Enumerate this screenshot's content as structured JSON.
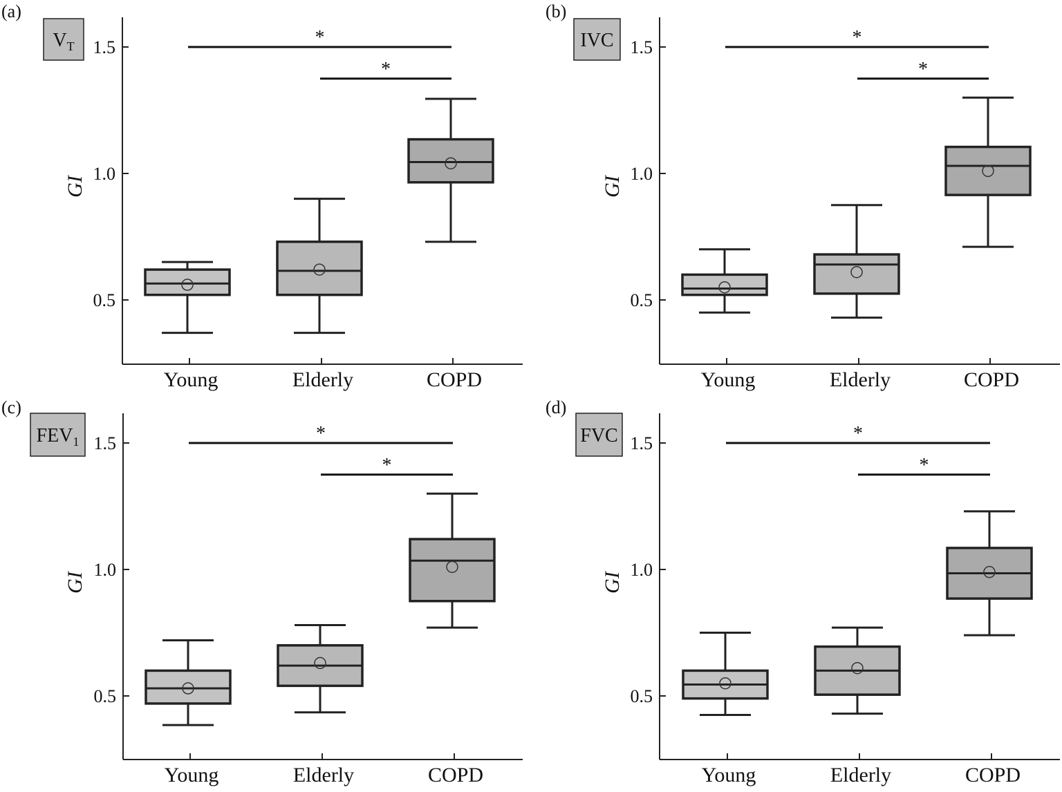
{
  "chart_data": [
    {
      "type": "box",
      "panel_label": "(a)",
      "tag": {
        "main": "V",
        "sub": "T"
      },
      "ylabel": "GI",
      "ylim": [
        0.25,
        1.62
      ],
      "yticks": [
        0.5,
        1.0,
        1.5
      ],
      "ytick_labels": [
        "0.5",
        "1.0",
        "1.5"
      ],
      "categories": [
        "Young",
        "Elderly",
        "COPD"
      ],
      "box_colors": [
        "#c3c3c3",
        "#b8b8b8",
        "#aaaaaa"
      ],
      "boxes": [
        {
          "whisker_low": 0.37,
          "q1": 0.52,
          "median": 0.565,
          "q3": 0.62,
          "whisker_high": 0.65,
          "mean": 0.56
        },
        {
          "whisker_low": 0.37,
          "q1": 0.52,
          "median": 0.615,
          "q3": 0.73,
          "whisker_high": 0.9,
          "mean": 0.62
        },
        {
          "whisker_low": 0.73,
          "q1": 0.965,
          "median": 1.045,
          "q3": 1.135,
          "whisker_high": 1.295,
          "mean": 1.04
        }
      ],
      "significance": [
        {
          "from": 0,
          "to": 2,
          "y": 1.5,
          "label": "*"
        },
        {
          "from": 1,
          "to": 2,
          "y": 1.375,
          "label": "*"
        }
      ]
    },
    {
      "type": "box",
      "panel_label": "(b)",
      "tag": {
        "main": "IVC",
        "sub": ""
      },
      "ylabel": "GI",
      "ylim": [
        0.25,
        1.62
      ],
      "yticks": [
        0.5,
        1.0,
        1.5
      ],
      "ytick_labels": [
        "0.5",
        "1.0",
        "1.5"
      ],
      "categories": [
        "Young",
        "Elderly",
        "COPD"
      ],
      "box_colors": [
        "#c3c3c3",
        "#b8b8b8",
        "#aaaaaa"
      ],
      "boxes": [
        {
          "whisker_low": 0.45,
          "q1": 0.52,
          "median": 0.545,
          "q3": 0.6,
          "whisker_high": 0.7,
          "mean": 0.55
        },
        {
          "whisker_low": 0.43,
          "q1": 0.525,
          "median": 0.64,
          "q3": 0.68,
          "whisker_high": 0.875,
          "mean": 0.61
        },
        {
          "whisker_low": 0.71,
          "q1": 0.915,
          "median": 1.03,
          "q3": 1.105,
          "whisker_high": 1.3,
          "mean": 1.01
        }
      ],
      "significance": [
        {
          "from": 0,
          "to": 2,
          "y": 1.5,
          "label": "*"
        },
        {
          "from": 1,
          "to": 2,
          "y": 1.375,
          "label": "*"
        }
      ]
    },
    {
      "type": "box",
      "panel_label": "(c)",
      "tag": {
        "main": "FEV",
        "sub": "1"
      },
      "ylabel": "GI",
      "ylim": [
        0.25,
        1.62
      ],
      "yticks": [
        0.5,
        1.0,
        1.5
      ],
      "ytick_labels": [
        "0.5",
        "1.0",
        "1.5"
      ],
      "categories": [
        "Young",
        "Elderly",
        "COPD"
      ],
      "box_colors": [
        "#c3c3c3",
        "#b8b8b8",
        "#aaaaaa"
      ],
      "boxes": [
        {
          "whisker_low": 0.385,
          "q1": 0.47,
          "median": 0.53,
          "q3": 0.6,
          "whisker_high": 0.72,
          "mean": 0.53
        },
        {
          "whisker_low": 0.435,
          "q1": 0.54,
          "median": 0.62,
          "q3": 0.7,
          "whisker_high": 0.78,
          "mean": 0.63
        },
        {
          "whisker_low": 0.77,
          "q1": 0.875,
          "median": 1.035,
          "q3": 1.12,
          "whisker_high": 1.3,
          "mean": 1.01
        }
      ],
      "significance": [
        {
          "from": 0,
          "to": 2,
          "y": 1.5,
          "label": "*"
        },
        {
          "from": 1,
          "to": 2,
          "y": 1.375,
          "label": "*"
        }
      ]
    },
    {
      "type": "box",
      "panel_label": "(d)",
      "tag": {
        "main": "FVC",
        "sub": ""
      },
      "ylabel": "GI",
      "ylim": [
        0.25,
        1.62
      ],
      "yticks": [
        0.5,
        1.0,
        1.5
      ],
      "ytick_labels": [
        "0.5",
        "1.0",
        "1.5"
      ],
      "categories": [
        "Young",
        "Elderly",
        "COPD"
      ],
      "box_colors": [
        "#c3c3c3",
        "#b8b8b8",
        "#aaaaaa"
      ],
      "boxes": [
        {
          "whisker_low": 0.425,
          "q1": 0.49,
          "median": 0.545,
          "q3": 0.6,
          "whisker_high": 0.75,
          "mean": 0.55
        },
        {
          "whisker_low": 0.43,
          "q1": 0.505,
          "median": 0.6,
          "q3": 0.695,
          "whisker_high": 0.77,
          "mean": 0.61
        },
        {
          "whisker_low": 0.74,
          "q1": 0.885,
          "median": 0.985,
          "q3": 1.085,
          "whisker_high": 1.23,
          "mean": 0.99
        }
      ],
      "significance": [
        {
          "from": 0,
          "to": 2,
          "y": 1.5,
          "label": "*"
        },
        {
          "from": 1,
          "to": 2,
          "y": 1.375,
          "label": "*"
        }
      ]
    }
  ]
}
